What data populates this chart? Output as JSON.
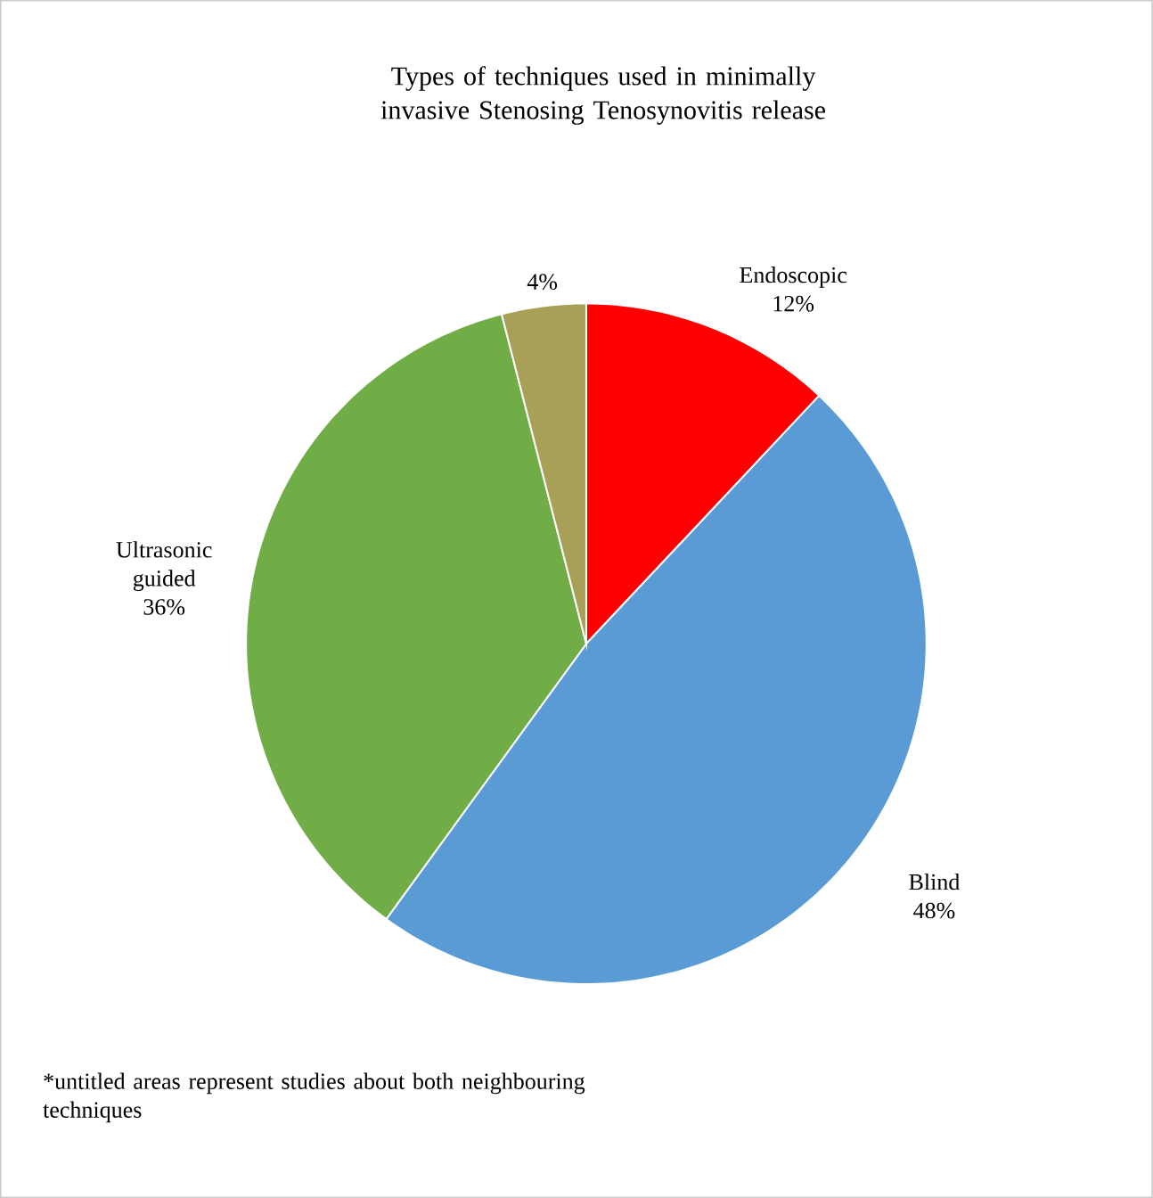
{
  "chart_data": {
    "type": "pie",
    "title": "Types of techniques used in minimally invasive Stenosing Tenosynovitis release",
    "categories": [
      "Endoscopic",
      "Blind",
      "Ultrasonic guided",
      null
    ],
    "values": [
      12,
      48,
      36,
      4
    ],
    "colors": [
      "#ff0000",
      "#5b9bd5",
      "#70ad47",
      "#a9a057"
    ],
    "value_labels": [
      "12%",
      "48%",
      "36%",
      "4%"
    ],
    "annotations": [
      "*untitled areas represent studies about both neighbouring techniques"
    ]
  }
}
